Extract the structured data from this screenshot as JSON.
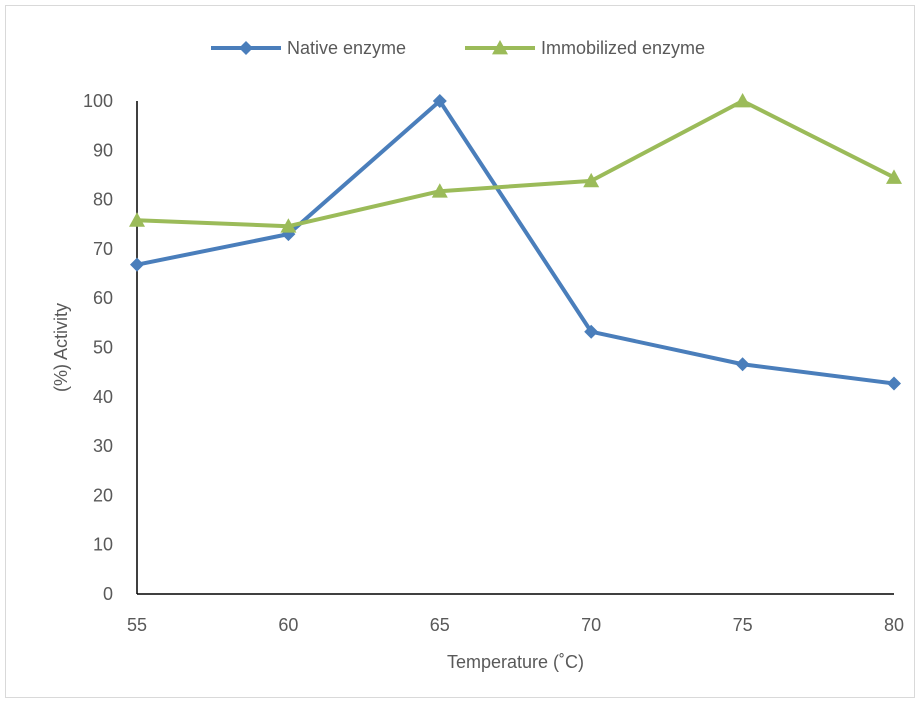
{
  "chart_data": {
    "type": "line",
    "title": "",
    "xlabel": "Temperature (˚C)",
    "ylabel": "(%) Activity",
    "x": [
      55,
      60,
      65,
      70,
      75,
      80
    ],
    "x_tick_labels": [
      "55",
      "60",
      "65",
      "70",
      "75",
      "80"
    ],
    "y_tick_labels": [
      "0",
      "10",
      "20",
      "30",
      "40",
      "50",
      "60",
      "70",
      "80",
      "90",
      "100"
    ],
    "ylim": [
      0,
      100
    ],
    "grid": false,
    "legend_position": "top",
    "series": [
      {
        "name": "Native enzyme",
        "values": [
          66.8,
          73,
          100,
          53.2,
          46.6,
          42.7
        ],
        "color": "#4a7ebb",
        "marker": "diamond"
      },
      {
        "name": "Immobilized enzyme",
        "values": [
          75.8,
          74.6,
          81.7,
          83.8,
          100,
          84.5
        ],
        "color": "#9bbb59",
        "marker": "triangle"
      }
    ]
  }
}
